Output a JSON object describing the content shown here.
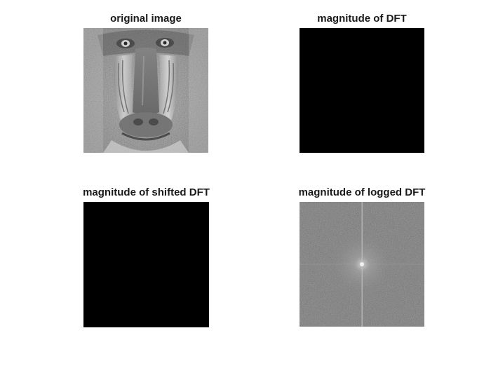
{
  "figure": {
    "subplots": [
      {
        "title": "original image",
        "image": "grayscale-baboon-mandrill-photo"
      },
      {
        "title": "magnitude of DFT",
        "image": "black"
      },
      {
        "title": "magnitude of shifted DFT",
        "image": "black"
      },
      {
        "title": "magnitude of logged DFT",
        "image": "gray-noise-spectrum-with-center-cross"
      }
    ]
  }
}
